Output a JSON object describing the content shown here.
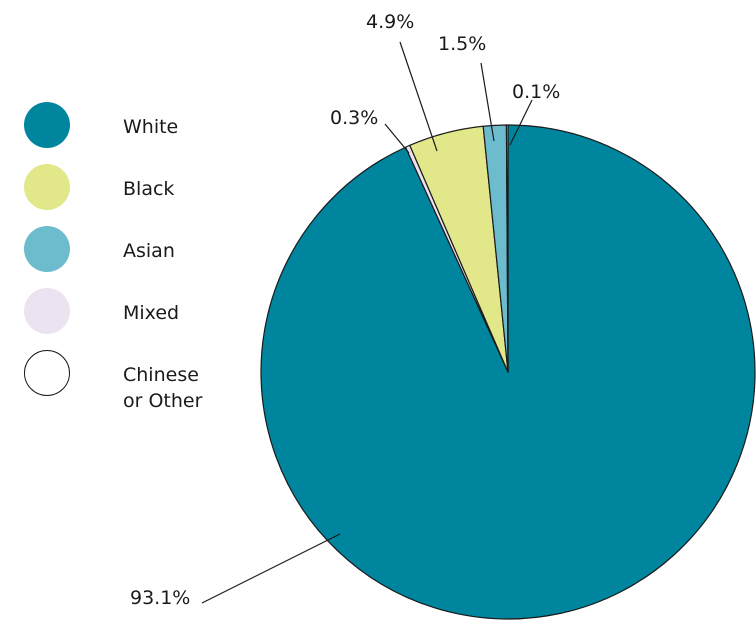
{
  "chart_data": {
    "type": "pie",
    "title": "",
    "start_angle_deg": 0,
    "direction": "clockwise",
    "legend_position": "left",
    "slices": [
      {
        "label": "White",
        "value": 93.1,
        "display": "93.1%",
        "color": "#00859e",
        "legend_text": [
          "White"
        ]
      },
      {
        "label": "Black",
        "value": 4.9,
        "display": "4.9%",
        "color": "#e2e88a",
        "legend_text": [
          "Black"
        ]
      },
      {
        "label": "Asian",
        "value": 1.5,
        "display": "1.5%",
        "color": "#6cbccd",
        "legend_text": [
          "Asian"
        ]
      },
      {
        "label": "Mixed",
        "value": 0.3,
        "display": "0.3%",
        "color": "#ebe3ef",
        "legend_text": [
          "Mixed"
        ]
      },
      {
        "label": "Chinese or Other",
        "value": 0.1,
        "display": "0.1%",
        "color": "#ffffff",
        "legend_text": [
          "Chinese",
          "or Other"
        ]
      }
    ],
    "legend_order": [
      "White",
      "Black",
      "Asian",
      "Mixed",
      "Chinese or Other"
    ]
  }
}
